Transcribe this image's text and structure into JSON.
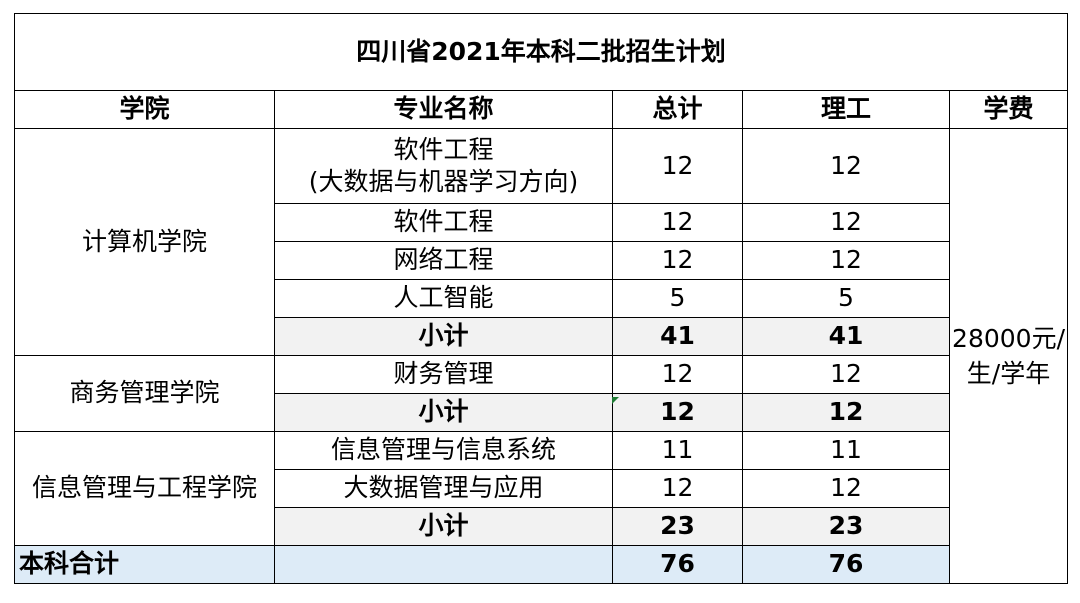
{
  "title": "四川省2021年本科二批招生计划",
  "headers": {
    "college": "学院",
    "major": "专业名称",
    "total": "总计",
    "science": "理工",
    "tuition": "学费"
  },
  "subtotal_label": "小计",
  "colleges": [
    {
      "name": "计算机学院",
      "majors": [
        {
          "name_line1": "软件工程",
          "name_line2": "(大数据与机器学习方向)",
          "total": "12",
          "science": "12"
        },
        {
          "name": "软件工程",
          "total": "12",
          "science": "12"
        },
        {
          "name": "网络工程",
          "total": "12",
          "science": "12"
        },
        {
          "name": "人工智能",
          "total": "5",
          "science": "5"
        }
      ],
      "subtotal_total": "41",
      "subtotal_science": "41"
    },
    {
      "name": "商务管理学院",
      "majors": [
        {
          "name": "财务管理",
          "total": "12",
          "science": "12"
        }
      ],
      "subtotal_total": "12",
      "subtotal_science": "12"
    },
    {
      "name": "信息管理与工程学院",
      "majors": [
        {
          "name": "信息管理与信息系统",
          "total": "11",
          "science": "11"
        },
        {
          "name": "大数据管理与应用",
          "total": "12",
          "science": "12"
        }
      ],
      "subtotal_total": "23",
      "subtotal_science": "23"
    }
  ],
  "tuition": {
    "line1": "28000元/",
    "line2": "生/学年"
  },
  "grand_total": {
    "label": "本科合计",
    "total": "76",
    "science": "76"
  },
  "colors": {
    "subtotal_fill": "#f2f2f2",
    "total_fill": "#ddebf7",
    "border": "#000000",
    "cell_comment_marker": "#1e7b34"
  }
}
